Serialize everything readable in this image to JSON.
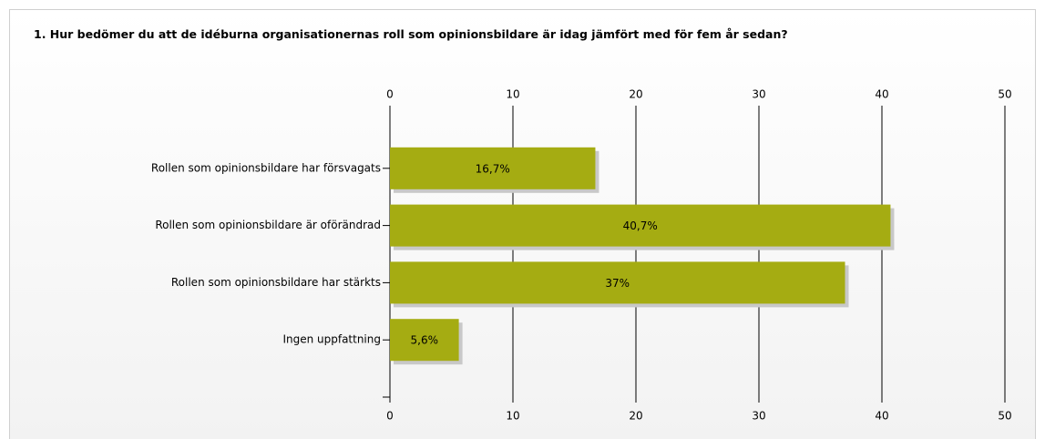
{
  "chart_data": {
    "type": "barh",
    "title": "1. Hur bedömer du att de idéburna organisationernas roll som opinionsbildare är idag jämfört med för fem år sedan?",
    "categories": [
      "Rollen som opinionsbildare har försvagats",
      "Rollen som opinionsbildare är oförändrad",
      "Rollen som opinionsbildare har stärkts",
      "Ingen uppfattning"
    ],
    "values": [
      16.7,
      40.7,
      37,
      5.6
    ],
    "value_labels": [
      "16,7%",
      "40,7%",
      "37%",
      "5,6%"
    ],
    "color": "#a5ac12",
    "xlim": [
      0,
      50
    ],
    "xticks": [
      0,
      10,
      20,
      30,
      40,
      50
    ],
    "grid": true
  }
}
